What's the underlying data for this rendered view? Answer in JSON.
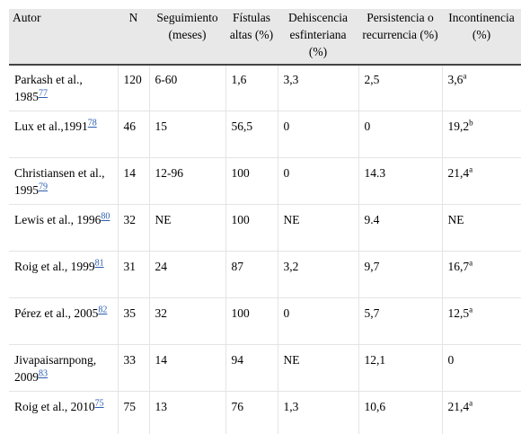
{
  "table": {
    "headers": [
      "Autor",
      "N",
      "Seguimiento (meses)",
      "Fístulas altas (%)",
      "Dehiscencia esfinteriana (%)",
      "Persistencia o recurrencia (%)",
      "Incontinencia (%)"
    ],
    "rows": [
      {
        "author": "Parkash et al., 1985",
        "ref": "77",
        "n": "120",
        "followup": "6-60",
        "high": "1,6",
        "dehiscence": "3,3",
        "persistence": "2,5",
        "incontinence": "3,6",
        "note": "a"
      },
      {
        "author": "Lux et al.,1991",
        "ref": "78",
        "n": "46",
        "followup": "15",
        "high": "56,5",
        "dehiscence": "0",
        "persistence": "0",
        "incontinence": "19,2",
        "note": "b"
      },
      {
        "author": "Christiansen et al., 1995",
        "ref": "79",
        "n": "14",
        "followup": "12-96",
        "high": "100",
        "dehiscence": "0",
        "persistence": "14.3",
        "incontinence": "21,4",
        "note": "a"
      },
      {
        "author": "Lewis et al., 1996",
        "ref": "80",
        "n": "32",
        "followup": "NE",
        "high": "100",
        "dehiscence": "NE",
        "persistence": "9.4",
        "incontinence": "NE",
        "note": ""
      },
      {
        "author": "Roig et al., 1999",
        "ref": "81",
        "n": "31",
        "followup": "24",
        "high": "87",
        "dehiscence": "3,2",
        "persistence": "9,7",
        "incontinence": "16,7",
        "note": "a"
      },
      {
        "author": "Pérez et al., 2005",
        "ref": "82",
        "n": "35",
        "followup": "32",
        "high": "100",
        "dehiscence": "0",
        "persistence": "5,7",
        "incontinence": "12,5",
        "note": "a"
      },
      {
        "author": "Jivapaisarnpong, 2009",
        "ref": "83",
        "n": "33",
        "followup": "14",
        "high": "94",
        "dehiscence": "NE",
        "persistence": "12,1",
        "incontinence": "0",
        "note": ""
      },
      {
        "author": "Roig et al., 2010",
        "ref": "75",
        "n": "75",
        "followup": "13",
        "high": "76",
        "dehiscence": "1,3",
        "persistence": "10,6",
        "incontinence": "21,4",
        "note": "a"
      }
    ]
  }
}
